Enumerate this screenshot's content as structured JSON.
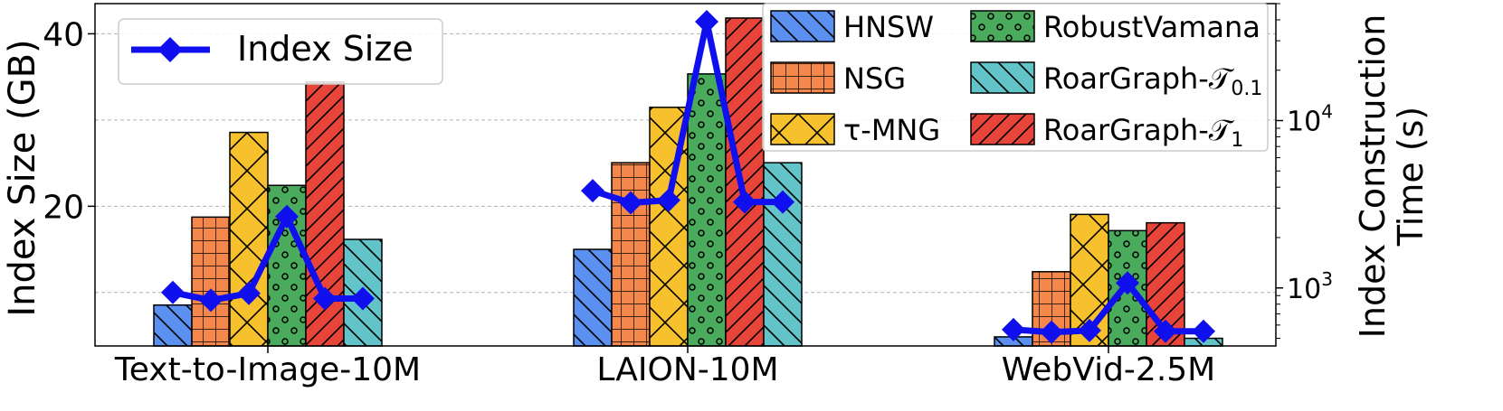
{
  "chart_data": {
    "type": "bar",
    "categories": [
      "Text-to-Image-10M",
      "LAION-10M",
      "WebVid-2.5M"
    ],
    "ylabel": "Index Size (GB)",
    "y2label_line1": "Index Construction",
    "y2label_line2": "Time (s)",
    "ylim": [
      3.8,
      43.5
    ],
    "y_ticks": [
      20,
      40
    ],
    "y_grid": [
      10,
      20,
      30,
      40
    ],
    "y2_scale": "log",
    "y2lim": [
      450,
      50000
    ],
    "y2_ticks": [
      {
        "value": 1000,
        "base": "10",
        "exp": "3"
      },
      {
        "value": 10000,
        "base": "10",
        "exp": "4"
      }
    ],
    "grid": true,
    "series": [
      {
        "name": "HNSW",
        "sub": "",
        "axis": "right",
        "color": "#5b8ff0",
        "hatch": "back-diagonal",
        "values": [
          790,
          1700,
          510
        ]
      },
      {
        "name": "NSG",
        "sub": "",
        "axis": "right",
        "color": "#f4874b",
        "hatch": "grid",
        "values": [
          2650,
          5600,
          1250
        ]
      },
      {
        "name": "τ-MNG",
        "sub": "",
        "axis": "right",
        "color": "#f7c12e",
        "hatch": "cross",
        "values": [
          8500,
          12000,
          2750
        ]
      },
      {
        "name": "RobustVamana",
        "sub": "",
        "axis": "right",
        "color": "#4aab5d",
        "hatch": "circles",
        "values": [
          4100,
          19000,
          2200
        ]
      },
      {
        "name": "RoarGraph-𝒯",
        "sub": "1",
        "axis": "right",
        "color": "#e8453a",
        "hatch": "forward-diagonal",
        "values": [
          17000,
          41000,
          2450
        ]
      },
      {
        "name": "RoarGraph-𝒯",
        "sub": "0.1",
        "axis": "right",
        "color": "#62c4c8",
        "hatch": "back-diagonal",
        "values": [
          1950,
          5600,
          500
        ]
      }
    ],
    "line_series": {
      "name": "Index Size",
      "axis": "left",
      "color": "#1010ee",
      "values": [
        [
          10.0,
          9.1,
          9.9,
          18.8,
          9.3,
          9.3
        ],
        [
          21.8,
          20.4,
          20.7,
          41.4,
          20.5,
          20.5
        ],
        [
          5.7,
          5.4,
          5.6,
          11.1,
          5.5,
          5.5
        ]
      ]
    },
    "legend": {
      "placement": "top-right",
      "columns": [
        [
          {
            "name": "HNSW",
            "sub": ""
          },
          {
            "name": "NSG",
            "sub": ""
          },
          {
            "name": "τ-MNG",
            "sub": ""
          }
        ],
        [
          {
            "name": "RobustVamana",
            "sub": ""
          },
          {
            "name": "RoarGraph-𝒯",
            "sub": "0.1"
          },
          {
            "name": "RoarGraph-𝒯",
            "sub": "1"
          }
        ]
      ],
      "order": [
        0,
        1,
        2,
        3,
        5,
        4
      ]
    },
    "line_legend": {
      "placement": "top-left",
      "label": "Index Size"
    }
  }
}
